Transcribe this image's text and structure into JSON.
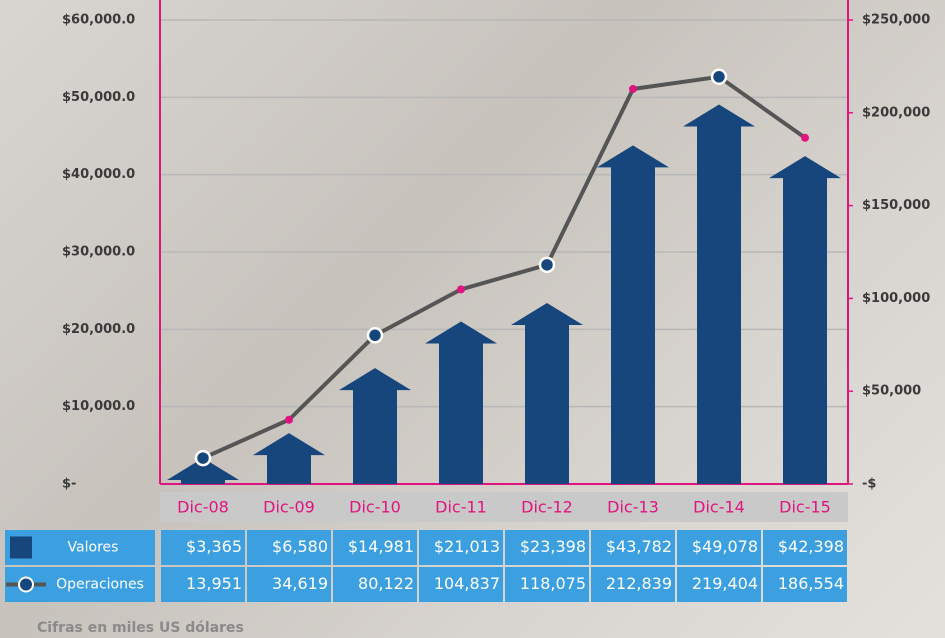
{
  "chart_data": {
    "type": "bar",
    "categories": [
      "Dic-08",
      "Dic-09",
      "Dic-10",
      "Dic-11",
      "Dic-12",
      "Dic-13",
      "Dic-14",
      "Dic-15"
    ],
    "series": [
      {
        "name": "Valores",
        "type": "bar",
        "color": "#17467c",
        "values": [
          3365,
          6580,
          14981,
          21013,
          23398,
          43782,
          49078,
          42398
        ],
        "value_labels": [
          "$3,365",
          "$6,580",
          "$14,981",
          "$21,013",
          "$23,398",
          "$43,782",
          "$49,078",
          "$42,398"
        ]
      },
      {
        "name": "Operaciones",
        "type": "line",
        "axis": "y2",
        "color": "#555555",
        "values": [
          13951,
          34619,
          80122,
          104837,
          118075,
          212839,
          219404,
          186554
        ],
        "value_labels": [
          "13,951",
          "34,619",
          "80,122",
          "104,837",
          "118,075",
          "212,839",
          "219,404",
          "186,554"
        ]
      }
    ],
    "ylim": [
      0,
      60000
    ],
    "yticks": [
      {
        "value": 0,
        "label": "$-"
      },
      {
        "value": 10000,
        "label": "$10,000.0"
      },
      {
        "value": 20000,
        "label": "$20,000.0"
      },
      {
        "value": 30000,
        "label": "$30,000.0"
      },
      {
        "value": 40000,
        "label": "$40,000.0"
      },
      {
        "value": 50000,
        "label": "$50,000.0"
      },
      {
        "value": 60000,
        "label": "$60,000.0"
      }
    ],
    "y2lim": [
      0,
      250000
    ],
    "y2ticks": [
      {
        "value": 0,
        "label": "-$"
      },
      {
        "value": 50000,
        "label": "$50,000"
      },
      {
        "value": 100000,
        "label": "$100,000"
      },
      {
        "value": 150000,
        "label": "$150,000"
      },
      {
        "value": 200000,
        "label": "$200,000"
      },
      {
        "value": 250000,
        "label": "$250,000"
      }
    ],
    "grid": true,
    "footnote": "Cifras en miles US dólares"
  }
}
